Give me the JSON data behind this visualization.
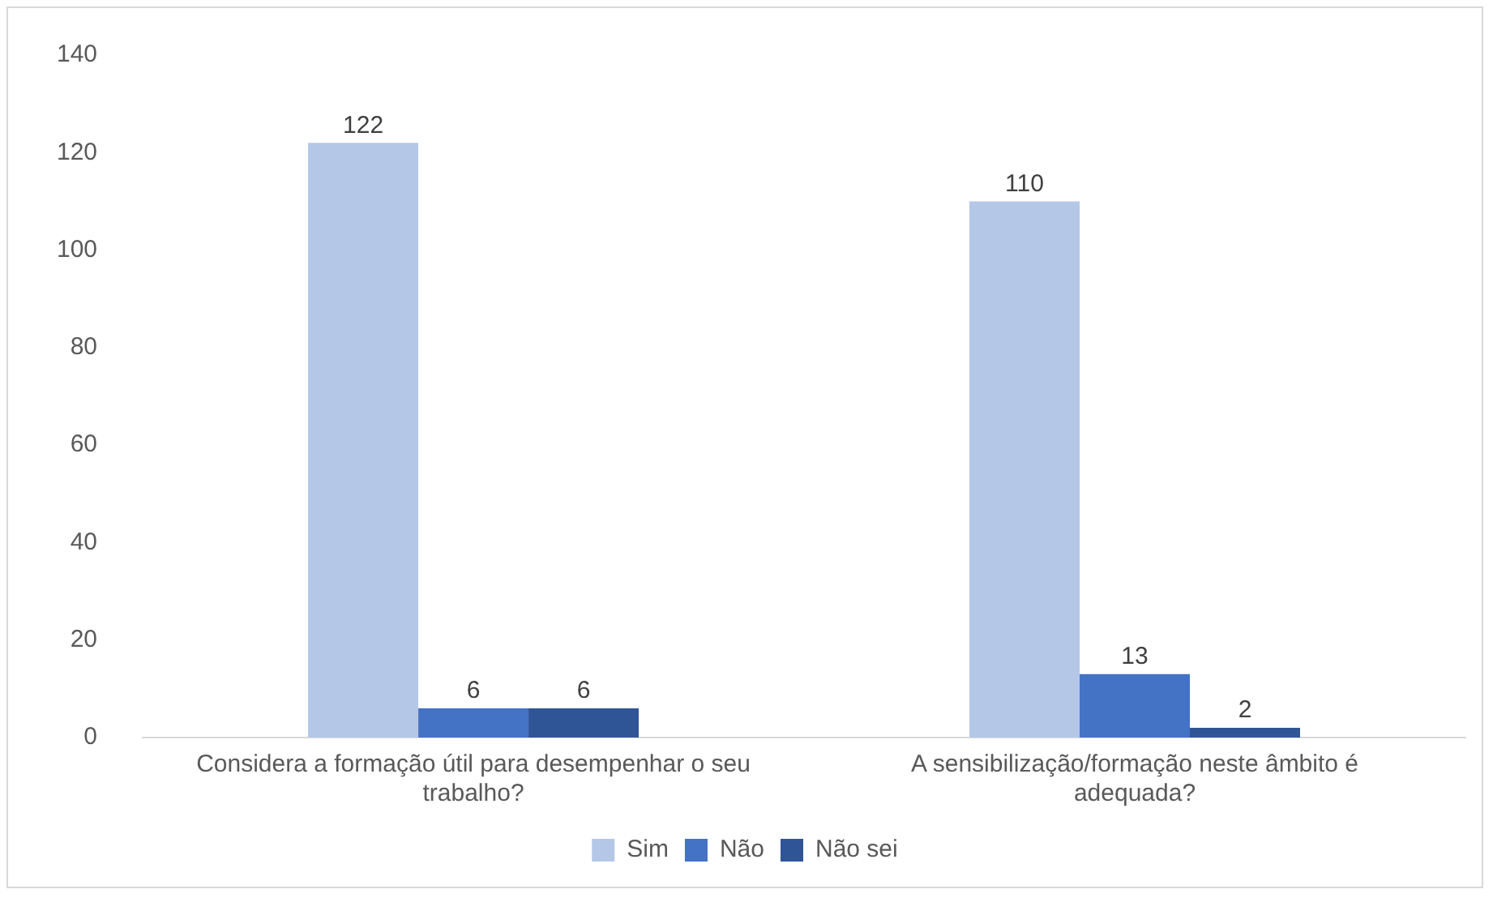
{
  "chart_data": {
    "type": "bar",
    "categories": [
      "Considera a formação útil para desempenhar o seu trabalho?",
      "A sensibilização/formação neste âmbito é adequada?"
    ],
    "series": [
      {
        "name": "Sim",
        "color": "#b4c7e7",
        "values": [
          122,
          110
        ]
      },
      {
        "name": "Não",
        "color": "#4472c4",
        "values": [
          6,
          13
        ]
      },
      {
        "name": "Não sei",
        "color": "#2f5597",
        "values": [
          6,
          2
        ]
      }
    ],
    "ylim": [
      0,
      140
    ],
    "yticks": [
      0,
      20,
      40,
      60,
      80,
      100,
      120,
      140
    ],
    "grid": false,
    "legend": "bottom",
    "data_labels": true
  }
}
